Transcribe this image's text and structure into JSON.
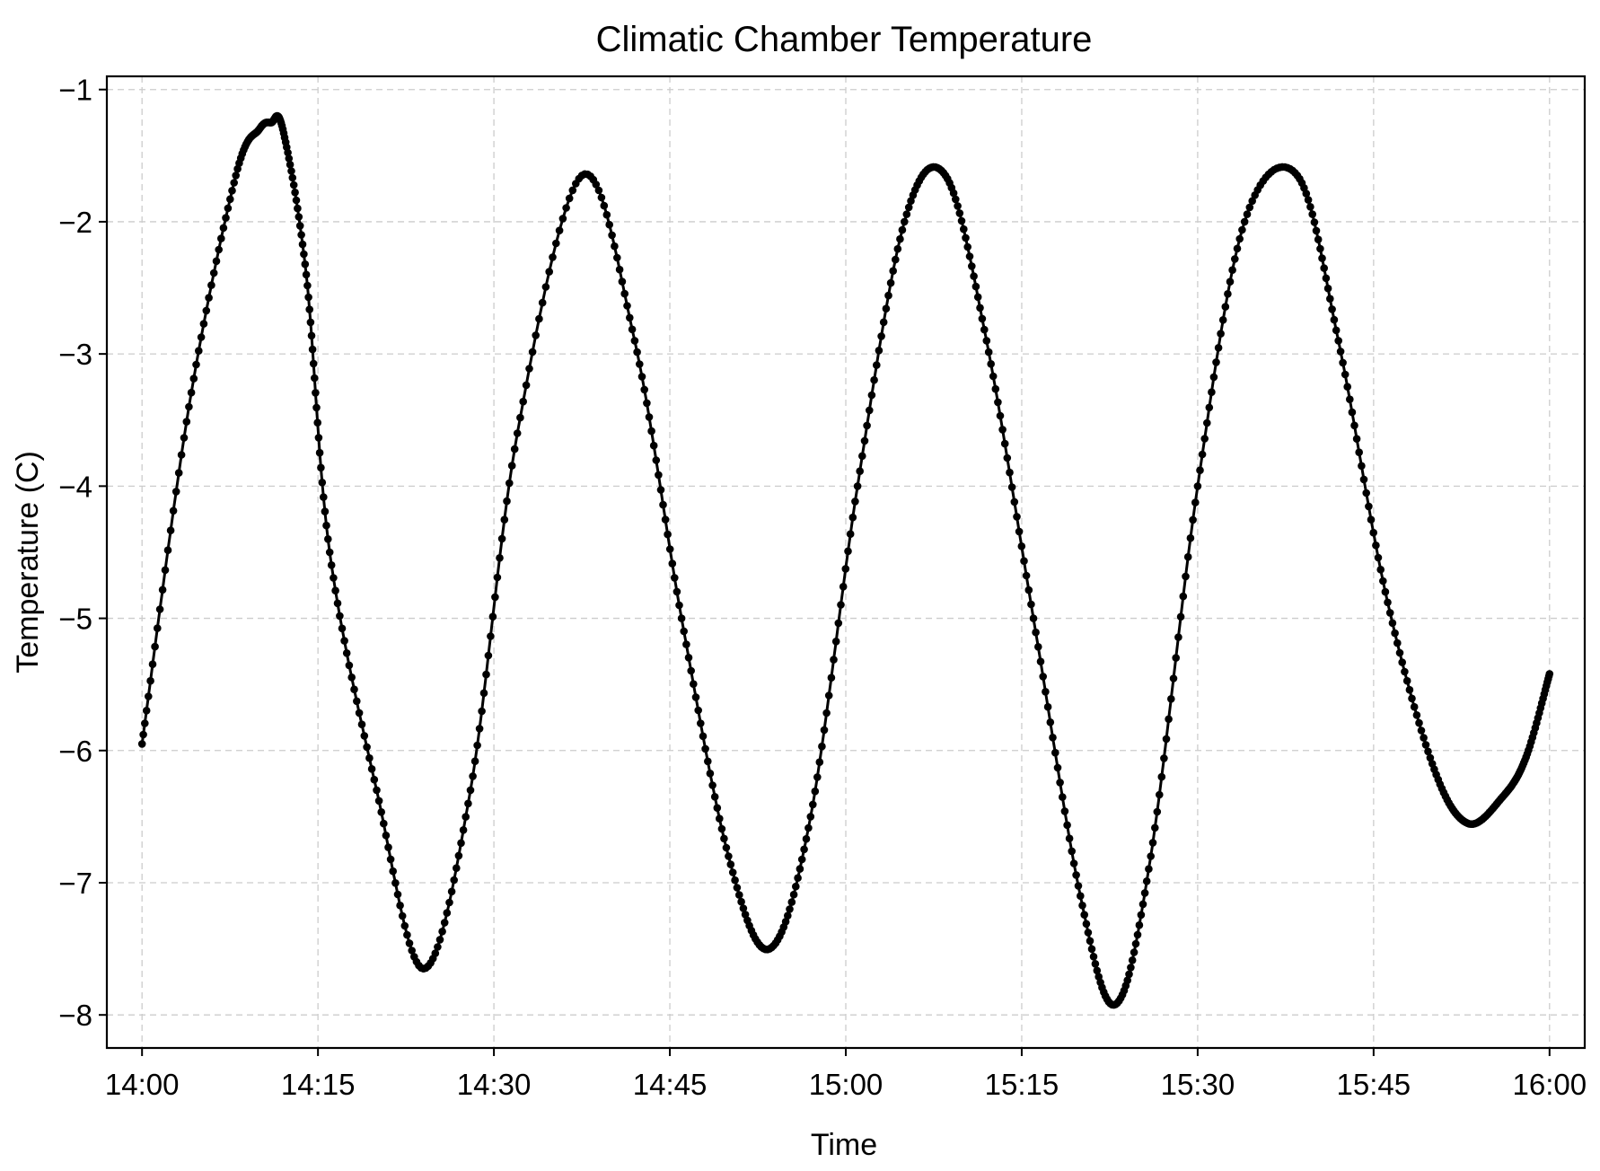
{
  "chart_data": {
    "type": "line",
    "title": "Climatic Chamber Temperature",
    "xlabel": "Time",
    "ylabel": "Temperature (C)",
    "x_ticks": [
      "14:00",
      "14:15",
      "14:30",
      "14:45",
      "15:00",
      "15:15",
      "15:30",
      "15:45",
      "16:00"
    ],
    "y_ticks": [
      -1,
      -2,
      -3,
      -4,
      -5,
      -6,
      -7,
      -8
    ],
    "y_tick_labels": [
      "−1",
      "−2",
      "−3",
      "−4",
      "−5",
      "−6",
      "−7",
      "−8"
    ],
    "xlim": [
      "13:57",
      "16:03"
    ],
    "ylim": [
      -8.25,
      -0.9
    ],
    "grid": true,
    "series": [
      {
        "marker": "circle",
        "color": "#000000",
        "x": [
          "14:00",
          "14:04",
          "14:08",
          "14:10",
          "14:11",
          "14:12",
          "14:14",
          "14:16",
          "14:20",
          "14:24",
          "14:28",
          "14:32",
          "14:37.5",
          "14:42",
          "14:46",
          "14:50",
          "14:53.5",
          "14:57",
          "15:01",
          "15:05",
          "15:08.5",
          "15:12",
          "15:16",
          "15:20",
          "15:23",
          "15:26",
          "15:30",
          "15:34",
          "15:38.5",
          "15:42",
          "15:46",
          "15:50",
          "15:53",
          "15:56",
          "15:58",
          "16:00"
        ],
        "y": [
          -5.95,
          -3.4,
          -1.65,
          -1.3,
          -1.25,
          -1.3,
          -2.4,
          -4.5,
          -6.3,
          -7.65,
          -6.3,
          -3.6,
          -1.65,
          -2.9,
          -5.0,
          -6.8,
          -7.5,
          -6.5,
          -4.0,
          -2.0,
          -1.65,
          -2.9,
          -5.0,
          -7.1,
          -7.92,
          -6.8,
          -4.0,
          -2.0,
          -1.65,
          -2.9,
          -4.8,
          -6.1,
          -6.55,
          -6.35,
          -6.05,
          -5.42
        ]
      }
    ]
  }
}
